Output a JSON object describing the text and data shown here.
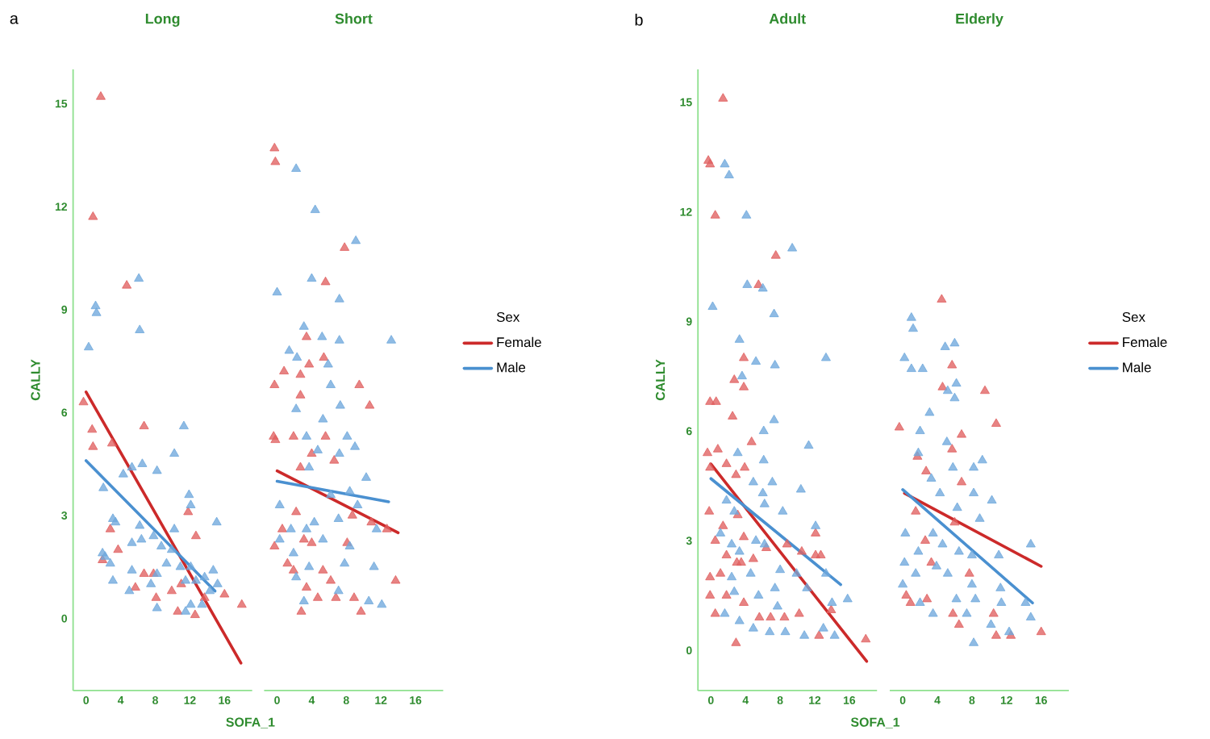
{
  "chart_data": [
    {
      "type": "scatter",
      "title": "Long",
      "xlabel": "SOFA_1",
      "ylabel": "CALLY",
      "annotations": [
        "a"
      ],
      "legend": false,
      "tick_labels": "xy",
      "xlim": [
        -1.5,
        19.2
      ],
      "ylim": [
        -2.1,
        16
      ],
      "xticks": [
        0,
        4,
        8,
        12,
        16
      ],
      "yticks": [
        0,
        3,
        6,
        9,
        12,
        15
      ],
      "series": [
        {
          "marker": "triangle",
          "color": "#e06060",
          "x": [
            1.7,
            0.8,
            4.7,
            -0.3,
            0.7,
            0.8,
            3.0,
            6.7,
            11.8,
            12.7,
            2.8,
            3.7,
            1.9,
            6.7,
            7.8,
            5.7,
            8.1,
            9.9,
            11.0,
            10.6,
            12.6,
            13.7,
            16.0,
            18.0
          ],
          "values": [
            15.2,
            11.7,
            9.7,
            6.3,
            5.5,
            5.0,
            5.1,
            5.6,
            3.1,
            2.4,
            2.6,
            2.0,
            1.7,
            1.3,
            1.3,
            0.9,
            0.6,
            0.8,
            1.0,
            0.2,
            0.1,
            0.6,
            0.7,
            0.4
          ]
        },
        {
          "marker": "triangle",
          "color": "#6fa8dc",
          "x": [
            6.1,
            1.1,
            1.2,
            6.2,
            0.3,
            11.3,
            10.2,
            6.5,
            5.3,
            4.3,
            8.2,
            2.0,
            11.9,
            12.1,
            15.1,
            3.1,
            3.4,
            6.2,
            10.2,
            5.3,
            6.4,
            7.8,
            8.7,
            1.9,
            9.9,
            2.2,
            2.8,
            5.3,
            8.2,
            9.3,
            10.9,
            12.1,
            14.7,
            13.7,
            3.1,
            5.0,
            7.5,
            11.5,
            12.7,
            15.2,
            8.2,
            11.5,
            12.1,
            13.4,
            14.3
          ],
          "values": [
            9.9,
            9.1,
            8.9,
            8.4,
            7.9,
            5.6,
            4.8,
            4.5,
            4.4,
            4.2,
            4.3,
            3.8,
            3.6,
            3.3,
            2.8,
            2.9,
            2.8,
            2.7,
            2.6,
            2.2,
            2.3,
            2.4,
            2.1,
            1.9,
            2.0,
            1.8,
            1.6,
            1.4,
            1.3,
            1.6,
            1.5,
            1.5,
            1.4,
            1.2,
            1.1,
            0.8,
            1.0,
            1.1,
            1.1,
            1.0,
            0.3,
            0.2,
            0.4,
            0.4,
            0.8
          ]
        },
        {
          "type": "line",
          "color": "#cc2a2a",
          "x": [
            0,
            17.9
          ],
          "values": [
            6.6,
            -1.3
          ]
        },
        {
          "type": "line",
          "color": "#4a90d0",
          "x": [
            0,
            14.9
          ],
          "values": [
            4.6,
            0.8
          ]
        }
      ]
    },
    {
      "type": "scatter",
      "title": "Short",
      "legend": "right",
      "legend_title": "Sex",
      "tick_labels": "x",
      "xlim": [
        -1.5,
        19.2
      ],
      "xticks": [
        0,
        4,
        8,
        12,
        16
      ],
      "yticks": [
        0,
        3,
        6,
        9,
        12,
        15
      ],
      "series": [
        {
          "marker": "triangle",
          "color": "#e06060",
          "x": [
            -0.3,
            -0.2,
            7.8,
            5.6,
            3.4,
            5.4,
            0.8,
            -0.3,
            2.7,
            3.7,
            9.5,
            10.7,
            2.7,
            -0.4,
            -0.2,
            1.9,
            5.6,
            4.0,
            6.6,
            2.7,
            2.2,
            8.7,
            10.9,
            12.7,
            3.1,
            -0.3,
            1.2,
            1.9,
            5.3,
            6.2,
            3.4,
            4.7,
            6.8,
            8.9,
            2.8,
            9.7,
            13.7,
            8.1,
            0.6,
            4.0
          ],
          "values": [
            13.7,
            13.3,
            10.8,
            9.8,
            8.2,
            7.6,
            7.2,
            6.8,
            7.1,
            7.4,
            6.8,
            6.2,
            6.5,
            5.3,
            5.2,
            5.3,
            5.3,
            4.8,
            4.6,
            4.4,
            3.1,
            3.0,
            2.8,
            2.6,
            2.3,
            2.1,
            1.6,
            1.4,
            1.4,
            1.1,
            0.9,
            0.6,
            0.6,
            0.6,
            0.2,
            0.2,
            1.1,
            2.2,
            2.6,
            2.2
          ]
        },
        {
          "marker": "triangle",
          "color": "#6fa8dc",
          "x": [
            2.2,
            4.4,
            9.1,
            4.0,
            0,
            7.2,
            3.1,
            5.2,
            7.2,
            13.2,
            1.4,
            2.3,
            5.9,
            6.2,
            7.3,
            2.2,
            5.3,
            8.1,
            9.0,
            3.4,
            4.7,
            7.2,
            10.3,
            3.7,
            0.3,
            8.4,
            6.2,
            11.5,
            9.3,
            1.6,
            4.3,
            7.1,
            0.3,
            5.3,
            8.4,
            11.2,
            7.8,
            2.2,
            3.7,
            7.1,
            10.6,
            12.1,
            3.1,
            1.9,
            3.4
          ],
          "values": [
            13.1,
            11.9,
            11.0,
            9.9,
            9.5,
            9.3,
            8.5,
            8.2,
            8.1,
            8.1,
            7.8,
            7.6,
            7.4,
            6.8,
            6.2,
            6.1,
            5.8,
            5.3,
            5.0,
            5.3,
            4.9,
            4.8,
            4.1,
            4.4,
            3.3,
            3.7,
            3.6,
            2.6,
            3.3,
            2.6,
            2.8,
            2.9,
            2.3,
            2.3,
            2.1,
            1.5,
            1.6,
            1.2,
            1.5,
            0.8,
            0.5,
            0.4,
            0.5,
            1.9,
            2.6
          ]
        },
        {
          "type": "line",
          "name": "Female",
          "color": "#cc2a2a",
          "x": [
            0,
            14.0
          ],
          "values": [
            4.3,
            2.5
          ]
        },
        {
          "type": "line",
          "name": "Male",
          "color": "#4a90d0",
          "x": [
            0,
            12.9
          ],
          "values": [
            4.0,
            3.4
          ]
        }
      ]
    },
    {
      "type": "scatter",
      "title": "Adult",
      "xlabel": "SOFA_1",
      "ylabel": "CALLY",
      "annotations": [
        "b"
      ],
      "legend": false,
      "tick_labels": "xy",
      "xlim": [
        -1.5,
        19.2
      ],
      "ylim": [
        -1.1,
        15.9
      ],
      "xticks": [
        0,
        4,
        8,
        12,
        16
      ],
      "yticks": [
        0,
        3,
        6,
        9,
        12,
        15
      ],
      "series": [
        {
          "marker": "triangle",
          "color": "#e06060",
          "x": [
            1.4,
            -0.3,
            -0.1,
            0.5,
            7.5,
            5.5,
            3.8,
            2.7,
            3.8,
            -0.1,
            0.6,
            2.5,
            -0.4,
            0.8,
            4.7,
            -0.1,
            3.9,
            1.8,
            2.9,
            -0.2,
            1.4,
            3.1,
            0.5,
            3.8,
            6.4,
            8.8,
            10.5,
            12.1,
            12.7,
            12.1,
            1.8,
            -0.1,
            3.0,
            4.9,
            3.5,
            1.1,
            -0.1,
            1.8,
            3.8,
            6.9,
            8.5,
            10.2,
            13.9,
            0.5,
            2.9,
            12.5,
            17.9,
            5.6
          ],
          "values": [
            15.1,
            13.4,
            13.3,
            11.9,
            10.8,
            10.0,
            8.0,
            7.4,
            7.2,
            6.8,
            6.8,
            6.4,
            5.4,
            5.5,
            5.7,
            5.0,
            5.0,
            5.1,
            4.8,
            3.8,
            3.4,
            3.7,
            3.0,
            3.1,
            2.8,
            2.9,
            2.7,
            2.6,
            2.6,
            3.2,
            2.6,
            2.0,
            2.4,
            2.5,
            2.4,
            2.1,
            1.5,
            1.5,
            1.3,
            0.9,
            0.9,
            1.0,
            1.1,
            1.0,
            0.2,
            0.4,
            0.3,
            0.9
          ]
        },
        {
          "marker": "triangle",
          "color": "#6fa8dc",
          "x": [
            1.6,
            2.1,
            4.1,
            9.4,
            4.2,
            6.0,
            0.2,
            7.3,
            3.3,
            5.2,
            7.4,
            13.3,
            3.6,
            7.3,
            6.1,
            3.1,
            11.3,
            6.1,
            4.9,
            7.1,
            10.4,
            6.0,
            1.8,
            6.2,
            8.3,
            2.7,
            1.1,
            12.1,
            2.4,
            5.2,
            6.2,
            8.0,
            9.9,
            13.3,
            3.3,
            4.6,
            2.4,
            2.7,
            5.5,
            7.4,
            11.1,
            14.0,
            15.8,
            3.3,
            4.9,
            6.8,
            8.6,
            10.8,
            13.0,
            14.3,
            1.6,
            7.7
          ],
          "values": [
            13.3,
            13.0,
            11.9,
            11.0,
            10.0,
            9.9,
            9.4,
            9.2,
            8.5,
            7.9,
            7.8,
            8.0,
            7.5,
            6.3,
            6.0,
            5.4,
            5.6,
            5.2,
            4.6,
            4.6,
            4.4,
            4.3,
            4.1,
            4.0,
            3.8,
            3.8,
            3.2,
            3.4,
            2.9,
            3.0,
            2.9,
            2.2,
            2.1,
            2.1,
            2.7,
            2.1,
            2.0,
            1.6,
            1.5,
            1.7,
            1.7,
            1.3,
            1.4,
            0.8,
            0.6,
            0.5,
            0.5,
            0.4,
            0.6,
            0.4,
            1.0,
            1.2
          ]
        },
        {
          "type": "line",
          "color": "#cc2a2a",
          "x": [
            0,
            18.0
          ],
          "values": [
            5.1,
            -0.3
          ]
        },
        {
          "type": "line",
          "color": "#4a90d0",
          "x": [
            0,
            15.0
          ],
          "values": [
            4.7,
            1.8
          ]
        }
      ]
    },
    {
      "type": "scatter",
      "title": "Elderly",
      "legend": "right",
      "legend_title": "Sex",
      "tick_labels": "x",
      "xlim": [
        -1.5,
        19.2
      ],
      "xticks": [
        0,
        4,
        8,
        12,
        16
      ],
      "yticks": [
        0,
        3,
        6,
        9,
        12,
        15
      ],
      "series": [
        {
          "marker": "triangle",
          "color": "#e06060",
          "x": [
            4.5,
            5.7,
            4.6,
            9.5,
            -0.4,
            10.8,
            6.8,
            1.7,
            5.7,
            2.7,
            6.8,
            1.5,
            6.0,
            2.6,
            3.3,
            7.7,
            0.4,
            0.9,
            2.8,
            5.8,
            6.5,
            10.5,
            10.8,
            12.5,
            16.0
          ],
          "values": [
            9.6,
            7.8,
            7.2,
            7.1,
            6.1,
            6.2,
            5.9,
            5.3,
            5.5,
            4.9,
            4.6,
            3.8,
            3.5,
            3.0,
            2.4,
            2.1,
            1.5,
            1.3,
            1.4,
            1.0,
            0.7,
            1.0,
            0.4,
            0.4,
            0.5
          ]
        },
        {
          "marker": "triangle",
          "color": "#6fa8dc",
          "x": [
            1.0,
            1.2,
            4.9,
            6.0,
            0.2,
            1.0,
            2.3,
            6.2,
            5.2,
            6.0,
            3.1,
            2.0,
            5.1,
            1.8,
            5.8,
            8.2,
            9.2,
            3.3,
            4.3,
            8.2,
            10.3,
            6.3,
            8.9,
            0.3,
            3.5,
            4.6,
            1.8,
            6.5,
            8.0,
            11.1,
            14.8,
            0.2,
            1.5,
            3.9,
            5.2,
            8.0,
            0,
            11.3,
            6.2,
            8.4,
            11.4,
            14.2,
            2.0,
            3.5,
            7.4,
            10.2,
            12.3,
            14.8,
            8.2
          ],
          "values": [
            9.1,
            8.8,
            8.3,
            8.4,
            8.0,
            7.7,
            7.7,
            7.3,
            7.1,
            6.9,
            6.5,
            6.0,
            5.7,
            5.4,
            5.0,
            5.0,
            5.2,
            4.7,
            4.3,
            4.3,
            4.1,
            3.9,
            3.6,
            3.2,
            3.2,
            2.9,
            2.7,
            2.7,
            2.6,
            2.6,
            2.9,
            2.4,
            2.1,
            2.3,
            2.1,
            1.8,
            1.8,
            1.7,
            1.4,
            1.4,
            1.3,
            1.3,
            1.3,
            1.0,
            1.0,
            0.7,
            0.5,
            0.9,
            0.2
          ]
        },
        {
          "type": "line",
          "name": "Female",
          "color": "#cc2a2a",
          "x": [
            0.2,
            16.0
          ],
          "values": [
            4.3,
            2.3
          ]
        },
        {
          "type": "line",
          "name": "Male",
          "color": "#4a90d0",
          "x": [
            0,
            15.0
          ],
          "values": [
            4.4,
            1.3
          ]
        }
      ]
    }
  ]
}
